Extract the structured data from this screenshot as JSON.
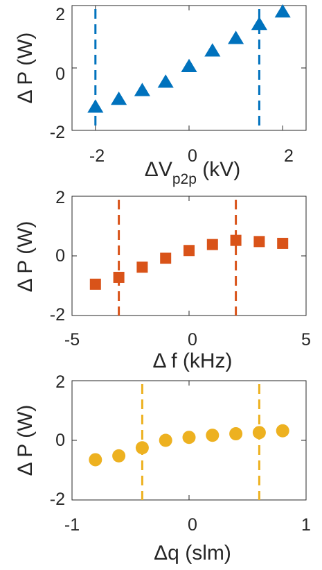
{
  "chart_data": [
    {
      "type": "scatter",
      "marker": "triangle",
      "color": "#0072BD",
      "x": [
        -2,
        -1.5,
        -1,
        -0.5,
        0,
        0.5,
        1,
        1.5,
        2
      ],
      "y": [
        -1.25,
        -1.0,
        -0.72,
        -0.45,
        0.05,
        0.55,
        0.95,
        1.4,
        1.8
      ],
      "xlim": [
        -2.5,
        2.5
      ],
      "ylim": [
        -2,
        2
      ],
      "xticks": [
        "-2",
        "0",
        "2"
      ],
      "yticks": [
        "2",
        "0",
        "-2"
      ],
      "xlabel_main": "ΔV",
      "xlabel_sub": "p2p",
      "xlabel_unit": " (kV)",
      "ylabel": "Δ P (W)",
      "vlines": [
        -2,
        1.5
      ],
      "grid": false
    },
    {
      "type": "scatter",
      "marker": "square",
      "color": "#D95319",
      "x": [
        -4,
        -3,
        -2,
        -1,
        0,
        1,
        2,
        3,
        4
      ],
      "y": [
        -0.95,
        -0.72,
        -0.38,
        -0.08,
        0.18,
        0.38,
        0.52,
        0.48,
        0.42
      ],
      "xlim": [
        -5,
        5
      ],
      "ylim": [
        -2,
        2
      ],
      "xticks": [
        "-5",
        "0",
        "5"
      ],
      "yticks": [
        "2",
        "0",
        "-2"
      ],
      "xlabel": "Δ f (kHz)",
      "ylabel": "Δ P (W)",
      "vlines": [
        -3,
        2
      ],
      "grid": false
    },
    {
      "type": "scatter",
      "marker": "circle",
      "color": "#EDB120",
      "x": [
        -0.8,
        -0.6,
        -0.4,
        -0.2,
        0,
        0.2,
        0.4,
        0.6,
        0.8
      ],
      "y": [
        -0.65,
        -0.52,
        -0.25,
        0.0,
        0.1,
        0.17,
        0.22,
        0.26,
        0.32
      ],
      "xlim": [
        -1,
        1
      ],
      "ylim": [
        -2,
        2
      ],
      "xticks": [
        "-1",
        "0",
        "1"
      ],
      "yticks": [
        "2",
        "0",
        "-2"
      ],
      "xlabel": "Δq (slm)",
      "ylabel": "Δ P (W)",
      "vlines": [
        -0.4,
        0.6
      ],
      "grid": false
    }
  ]
}
